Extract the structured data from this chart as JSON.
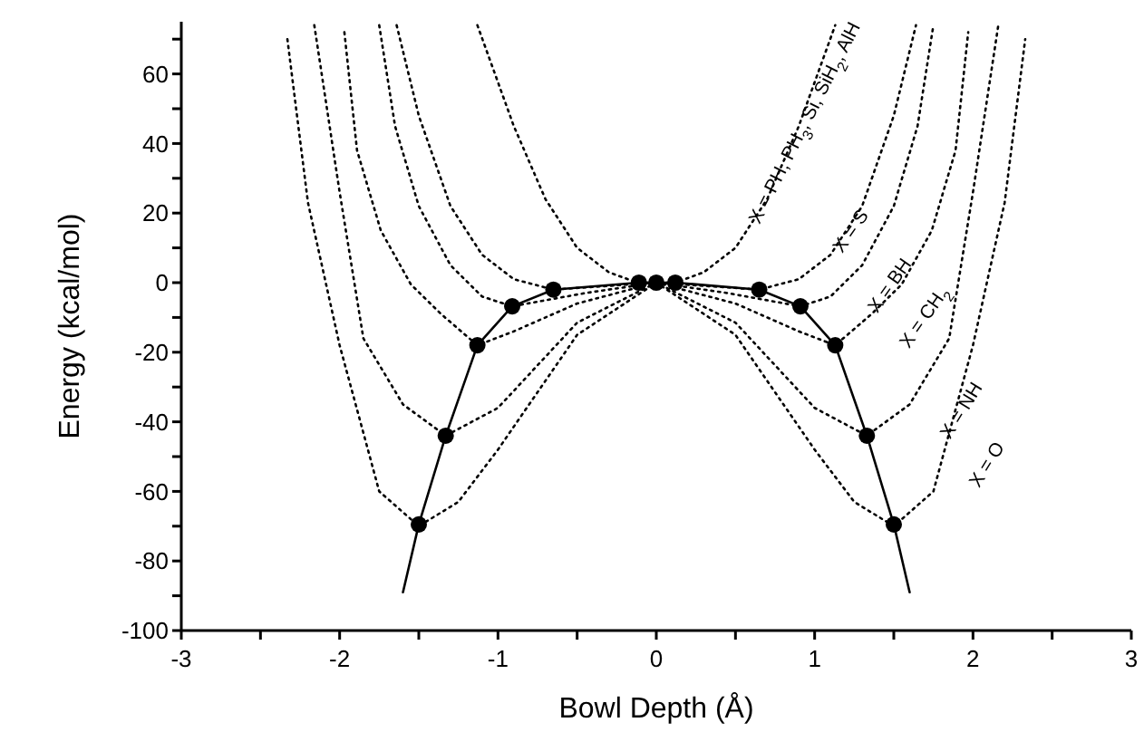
{
  "chart_data": {
    "type": "line",
    "xlabel": "Bowl Depth (Å)",
    "ylabel": "Energy (kcal/mol)",
    "xlim": [
      -3,
      3
    ],
    "ylim": [
      -100,
      75
    ],
    "xticks": [
      -3,
      {
        "value": -2.5,
        "label": null
      },
      -2,
      {
        "value": -1.5,
        "label": null
      },
      -1,
      {
        "value": -0.5,
        "label": null
      },
      0,
      {
        "value": 0.5,
        "label": null
      },
      1,
      {
        "value": 1.5,
        "label": null
      },
      2,
      {
        "value": 2.5,
        "label": null
      },
      3
    ],
    "yticks": [
      -100,
      {
        "value": -90,
        "label": null
      },
      -80,
      {
        "value": -70,
        "label": null
      },
      -60,
      {
        "value": -50,
        "label": null
      },
      -40,
      {
        "value": -30,
        "label": null
      },
      -20,
      {
        "value": -10,
        "label": null
      },
      0,
      {
        "value": 10,
        "label": null
      },
      20,
      {
        "value": 30,
        "label": null
      },
      40,
      {
        "value": 50,
        "label": null
      },
      60,
      {
        "value": 70,
        "label": null
      }
    ],
    "grid": false,
    "legend": false,
    "series": [
      {
        "type": "line",
        "name": "X = PH, PH$_{3}$, Si, SiH$_{2}$, AlH",
        "line_style": "dotted",
        "marker": "none",
        "color": "#000000",
        "x": [
          -1.13,
          -0.9,
          -0.7,
          -0.5,
          -0.3,
          -0.12,
          0,
          0.12,
          0.3,
          0.5,
          0.7,
          0.9,
          1.13
        ],
        "values": [
          74,
          45,
          24,
          10,
          3,
          0,
          0,
          0,
          3,
          10,
          24,
          45,
          74
        ]
      },
      {
        "type": "line",
        "name": "X = S",
        "line_style": "dotted",
        "marker": "none",
        "color": "#000000",
        "x": [
          -1.64,
          -1.5,
          -1.3,
          -1.1,
          -0.9,
          -0.65,
          -0.33,
          0,
          0.33,
          0.65,
          0.9,
          1.1,
          1.3,
          1.5,
          1.64
        ],
        "values": [
          74,
          48,
          22,
          8,
          1,
          -2,
          -1,
          0,
          -1,
          -2,
          1,
          8,
          22,
          48,
          74
        ]
      },
      {
        "type": "line",
        "name": "X = BH",
        "line_style": "dotted",
        "marker": "none",
        "color": "#000000",
        "x": [
          -1.75,
          -1.65,
          -1.5,
          -1.3,
          -1.1,
          -0.91,
          -0.45,
          0,
          0.45,
          0.91,
          1.1,
          1.3,
          1.5,
          1.65,
          1.75
        ],
        "values": [
          74,
          45,
          22,
          5,
          -4,
          -6.8,
          -3,
          0,
          -3,
          -6.8,
          -4,
          5,
          22,
          45,
          74
        ]
      },
      {
        "type": "line",
        "name": "X = CH$_{2}$",
        "line_style": "dotted",
        "marker": "none",
        "color": "#000000",
        "x": [
          -1.97,
          -1.89,
          -1.74,
          -1.55,
          -1.36,
          -1.13,
          -0.9,
          -0.5,
          0,
          0.5,
          0.9,
          1.13,
          1.36,
          1.55,
          1.74,
          1.89,
          1.97
        ],
        "values": [
          72,
          38,
          15,
          -0.5,
          -9,
          -18,
          -14,
          -6,
          0,
          -6,
          -14,
          -18,
          -9,
          -0.5,
          15,
          38,
          72
        ]
      },
      {
        "type": "line",
        "name": "X = NH",
        "line_style": "dotted",
        "marker": "none",
        "color": "#000000",
        "x": [
          -2.16,
          -2,
          -1.85,
          -1.6,
          -1.33,
          -1,
          -0.5,
          0,
          0.5,
          1,
          1.33,
          1.6,
          1.85,
          2,
          2.16
        ],
        "values": [
          74,
          26,
          -16,
          -35,
          -44,
          -36,
          -11.5,
          0,
          -11.5,
          -36,
          -44,
          -35,
          -16,
          26,
          74
        ]
      },
      {
        "type": "line",
        "name": "X = O",
        "line_style": "dotted",
        "marker": "none",
        "color": "#000000",
        "x": [
          -2.33,
          -2.2,
          -2,
          -1.75,
          -1.5,
          -1.25,
          -1,
          -0.5,
          0,
          0.5,
          1,
          1.25,
          1.5,
          1.75,
          2,
          2.2,
          2.33
        ],
        "values": [
          70,
          23,
          -18,
          -60,
          -70,
          -63,
          -48,
          -15,
          0,
          -15,
          -48,
          -63,
          -70,
          -60,
          -18,
          23,
          70
        ]
      },
      {
        "type": "line",
        "line_style": "solid",
        "marker": "none",
        "color": "#000000",
        "x": [
          -1.6,
          -1.5,
          -1.33,
          -1.13,
          -0.91,
          -0.65,
          -0.11,
          0,
          0.12,
          0.65,
          0.91,
          1.13,
          1.33,
          1.5,
          1.6
        ],
        "values": [
          -89,
          -69.5,
          -44,
          -18,
          -6.8,
          -2,
          0,
          0,
          0,
          -2,
          -6.8,
          -18,
          -44,
          -69.5,
          -89
        ]
      },
      {
        "type": "scatter",
        "marker": "circle",
        "color": "#000000",
        "x": [
          -1.5,
          -1.33,
          -1.13,
          -0.91,
          -0.65,
          -0.11,
          0,
          0.12,
          0.65,
          0.91,
          1.13,
          1.33,
          1.5
        ],
        "values": [
          -69.5,
          -44,
          -18,
          -6.8,
          -2,
          0,
          0,
          0,
          -2,
          -6.8,
          -18,
          -44,
          -69.5
        ]
      }
    ]
  }
}
